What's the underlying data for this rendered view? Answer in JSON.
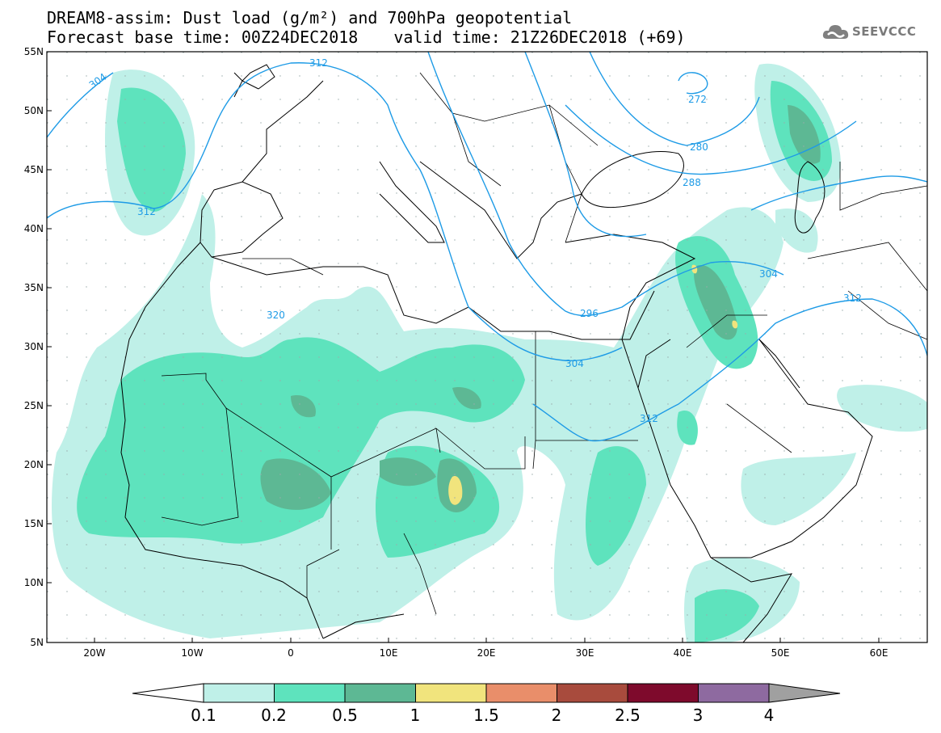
{
  "title": {
    "line1": "DREAM8-assim: Dust load (g/m²) and 700hPa geopotential",
    "base_time": "Forecast base time: 00Z24DEC2018",
    "valid_time": "valid time: 21Z26DEC2018 (+69)"
  },
  "logo": {
    "text": "SEEVCCC",
    "icon": "cloud-icon"
  },
  "map": {
    "lat_labels": [
      "55N",
      "50N",
      "45N",
      "40N",
      "35N",
      "30N",
      "25N",
      "20N",
      "15N",
      "10N",
      "5N"
    ],
    "lon_labels": [
      "20W",
      "10W",
      "0",
      "10E",
      "20E",
      "30E",
      "40E",
      "50E",
      "60E"
    ],
    "contour_labels": [
      "304",
      "312",
      "312",
      "320",
      "296",
      "304",
      "312",
      "304",
      "312",
      "272",
      "280",
      "288"
    ]
  },
  "legend": {
    "ticks": [
      "0.1",
      "0.2",
      "0.5",
      "1",
      "1.5",
      "2",
      "2.5",
      "3",
      "4"
    ],
    "colors": [
      "#bff0e8",
      "#5ee3bd",
      "#5db894",
      "#f1e47d",
      "#e98e6a",
      "#a84b3d",
      "#7e0a2c",
      "#8e6aa0"
    ],
    "under_color": "#ffffff",
    "over_color": "#a0a0a0"
  },
  "colors": {
    "contour": "#1e9be6",
    "coast": "#000000"
  }
}
